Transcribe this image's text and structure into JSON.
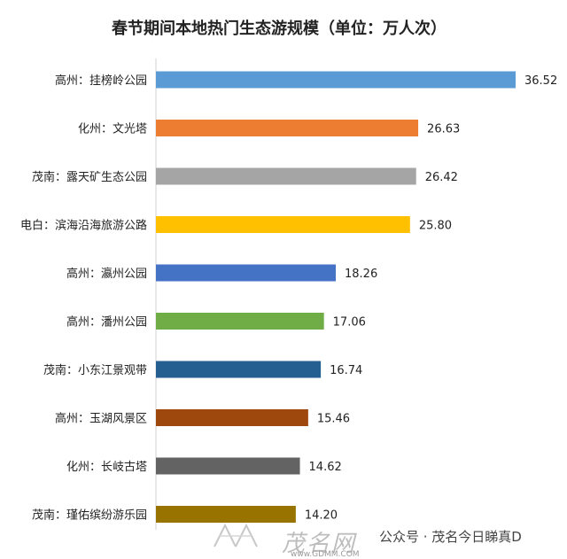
{
  "chart_data": {
    "type": "bar",
    "orientation": "horizontal",
    "title": "春节期间本地热门生态游规模（单位：万人次）",
    "categories": [
      "高州：挂榜岭公园",
      "化州：文光塔",
      "茂南：露天矿生态公园",
      "电白：滨海沿海旅游公路",
      "高州：瀛州公园",
      "高州：潘州公园",
      "茂南：小东江景观带",
      "高州：玉湖风景区",
      "化州：长岐古塔",
      "茂南：瑾佑缤纷游乐园"
    ],
    "values": [
      36.52,
      26.63,
      26.42,
      25.8,
      18.26,
      17.06,
      16.74,
      15.46,
      14.62,
      14.2
    ],
    "value_labels": [
      "36.52",
      "26.63",
      "26.42",
      "25.80",
      "18.26",
      "17.06",
      "16.74",
      "15.46",
      "14.62",
      "14.20"
    ],
    "colors": [
      "#5b9bd5",
      "#ed7d31",
      "#a5a5a5",
      "#ffc000",
      "#4472c4",
      "#70ad47",
      "#255e91",
      "#9e480e",
      "#636363",
      "#997300"
    ],
    "xlim": [
      0,
      38
    ],
    "grid": false,
    "legend": "none"
  },
  "watermark": {
    "brand": "茂名网",
    "url": "www.GDMM.COM",
    "account": "公众号 · 茂名今日睇真D"
  }
}
